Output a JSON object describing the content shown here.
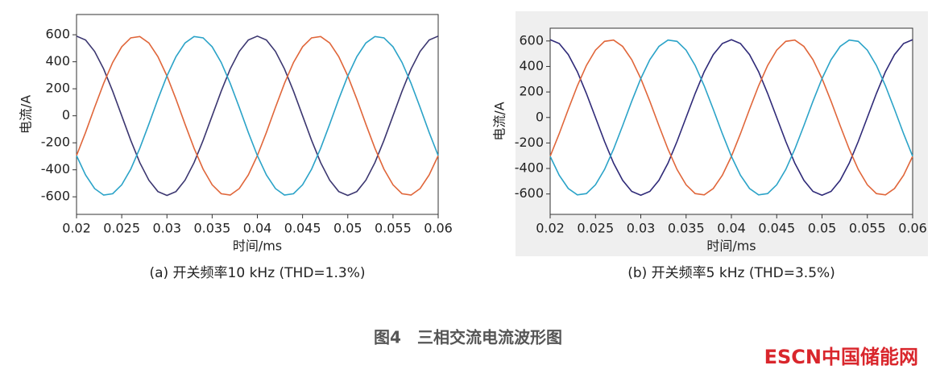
{
  "chart_data": [
    {
      "type": "line",
      "title": "(a) 开关频率10 kHz (THD=1.3%)",
      "xlabel": "时间/ms",
      "ylabel": "电流/A",
      "xlim": [
        0.02,
        0.06
      ],
      "xticks": [
        0.02,
        0.025,
        0.03,
        0.035,
        0.04,
        0.045,
        0.05,
        0.055,
        0.06
      ],
      "ylim": [
        -730,
        750
      ],
      "yticks": [
        -600,
        -400,
        -200,
        0,
        200,
        400,
        600
      ],
      "x": [
        0.02,
        0.021,
        0.022,
        0.023,
        0.024,
        0.025,
        0.026,
        0.027,
        0.028,
        0.029,
        0.03,
        0.031,
        0.032,
        0.033,
        0.034,
        0.035,
        0.036,
        0.037,
        0.038,
        0.039,
        0.04,
        0.041,
        0.042,
        0.043,
        0.044,
        0.045,
        0.046,
        0.047,
        0.048,
        0.049,
        0.05,
        0.051,
        0.052,
        0.053,
        0.054,
        0.055,
        0.056,
        0.057,
        0.058,
        0.059,
        0.06
      ],
      "series": [
        {
          "color": "#3b3670",
          "values": [
            590,
            561,
            477,
            347,
            182,
            0,
            -182,
            -347,
            -477,
            -561,
            -590,
            -561,
            -477,
            -347,
            -182,
            0,
            182,
            347,
            477,
            561,
            590,
            561,
            477,
            347,
            182,
            0,
            -182,
            -347,
            -477,
            -561,
            -590,
            -561,
            -477,
            -347,
            -182,
            0,
            182,
            347,
            477,
            561,
            590
          ]
        },
        {
          "color": "#e0663a",
          "values": [
            -295,
            -123,
            62,
            240,
            395,
            511,
            577,
            587,
            539,
            438,
            295,
            123,
            -62,
            -240,
            -395,
            -511,
            -577,
            -587,
            -539,
            -438,
            -295,
            -123,
            62,
            240,
            395,
            511,
            577,
            587,
            539,
            438,
            295,
            123,
            -62,
            -240,
            -395,
            -511,
            -577,
            -587,
            -539,
            -438,
            -295
          ]
        },
        {
          "color": "#2ba3c8",
          "values": [
            -295,
            -438,
            -539,
            -587,
            -577,
            -511,
            -395,
            -240,
            -62,
            123,
            295,
            438,
            539,
            587,
            577,
            511,
            395,
            240,
            62,
            -123,
            -295,
            -438,
            -539,
            -587,
            -577,
            -511,
            -395,
            -240,
            -62,
            123,
            295,
            438,
            539,
            587,
            577,
            511,
            395,
            240,
            62,
            -123,
            -295
          ]
        }
      ]
    },
    {
      "type": "line",
      "title": "(b) 开关频率5 kHz (THD=3.5%)",
      "xlabel": "时间/ms",
      "ylabel": "电流/A",
      "xlim": [
        0.02,
        0.06
      ],
      "xticks": [
        0.02,
        0.025,
        0.03,
        0.035,
        0.04,
        0.045,
        0.05,
        0.055,
        0.06
      ],
      "ylim": [
        -760,
        700
      ],
      "yticks": [
        -600,
        -400,
        -200,
        0,
        200,
        400,
        600
      ],
      "x": [
        0.02,
        0.021,
        0.022,
        0.023,
        0.024,
        0.025,
        0.026,
        0.027,
        0.028,
        0.029,
        0.03,
        0.031,
        0.032,
        0.033,
        0.034,
        0.035,
        0.036,
        0.037,
        0.038,
        0.039,
        0.04,
        0.041,
        0.042,
        0.043,
        0.044,
        0.045,
        0.046,
        0.047,
        0.048,
        0.049,
        0.05,
        0.051,
        0.052,
        0.053,
        0.054,
        0.055,
        0.056,
        0.057,
        0.058,
        0.059,
        0.06
      ],
      "series": [
        {
          "color": "#2f2a78",
          "values": [
            610,
            580,
            493,
            359,
            188,
            0,
            -188,
            -359,
            -493,
            -580,
            -610,
            -580,
            -493,
            -359,
            -188,
            0,
            188,
            359,
            493,
            580,
            610,
            580,
            493,
            359,
            188,
            0,
            -188,
            -359,
            -493,
            -580,
            -610,
            -580,
            -493,
            -359,
            -188,
            0,
            188,
            359,
            493,
            580,
            610
          ]
        },
        {
          "color": "#e0663a",
          "values": [
            -305,
            -127,
            64,
            248,
            408,
            528,
            597,
            607,
            557,
            453,
            305,
            127,
            -64,
            -248,
            -408,
            -528,
            -597,
            -607,
            -557,
            -453,
            -305,
            -127,
            64,
            248,
            408,
            528,
            597,
            607,
            557,
            453,
            305,
            127,
            -64,
            -248,
            -408,
            -528,
            -597,
            -607,
            -557,
            -453,
            -305
          ]
        },
        {
          "color": "#2ba3c8",
          "values": [
            -305,
            -453,
            -557,
            -607,
            -597,
            -528,
            -408,
            -248,
            -64,
            127,
            305,
            453,
            557,
            607,
            597,
            528,
            408,
            248,
            64,
            -127,
            -305,
            -453,
            -557,
            -607,
            -597,
            -528,
            -408,
            -248,
            -64,
            127,
            305,
            453,
            557,
            607,
            597,
            528,
            408,
            248,
            64,
            -127,
            -305
          ]
        }
      ]
    }
  ],
  "figure_caption": "图4　三相交流电流波形图",
  "watermark": "ESCN中国储能网"
}
